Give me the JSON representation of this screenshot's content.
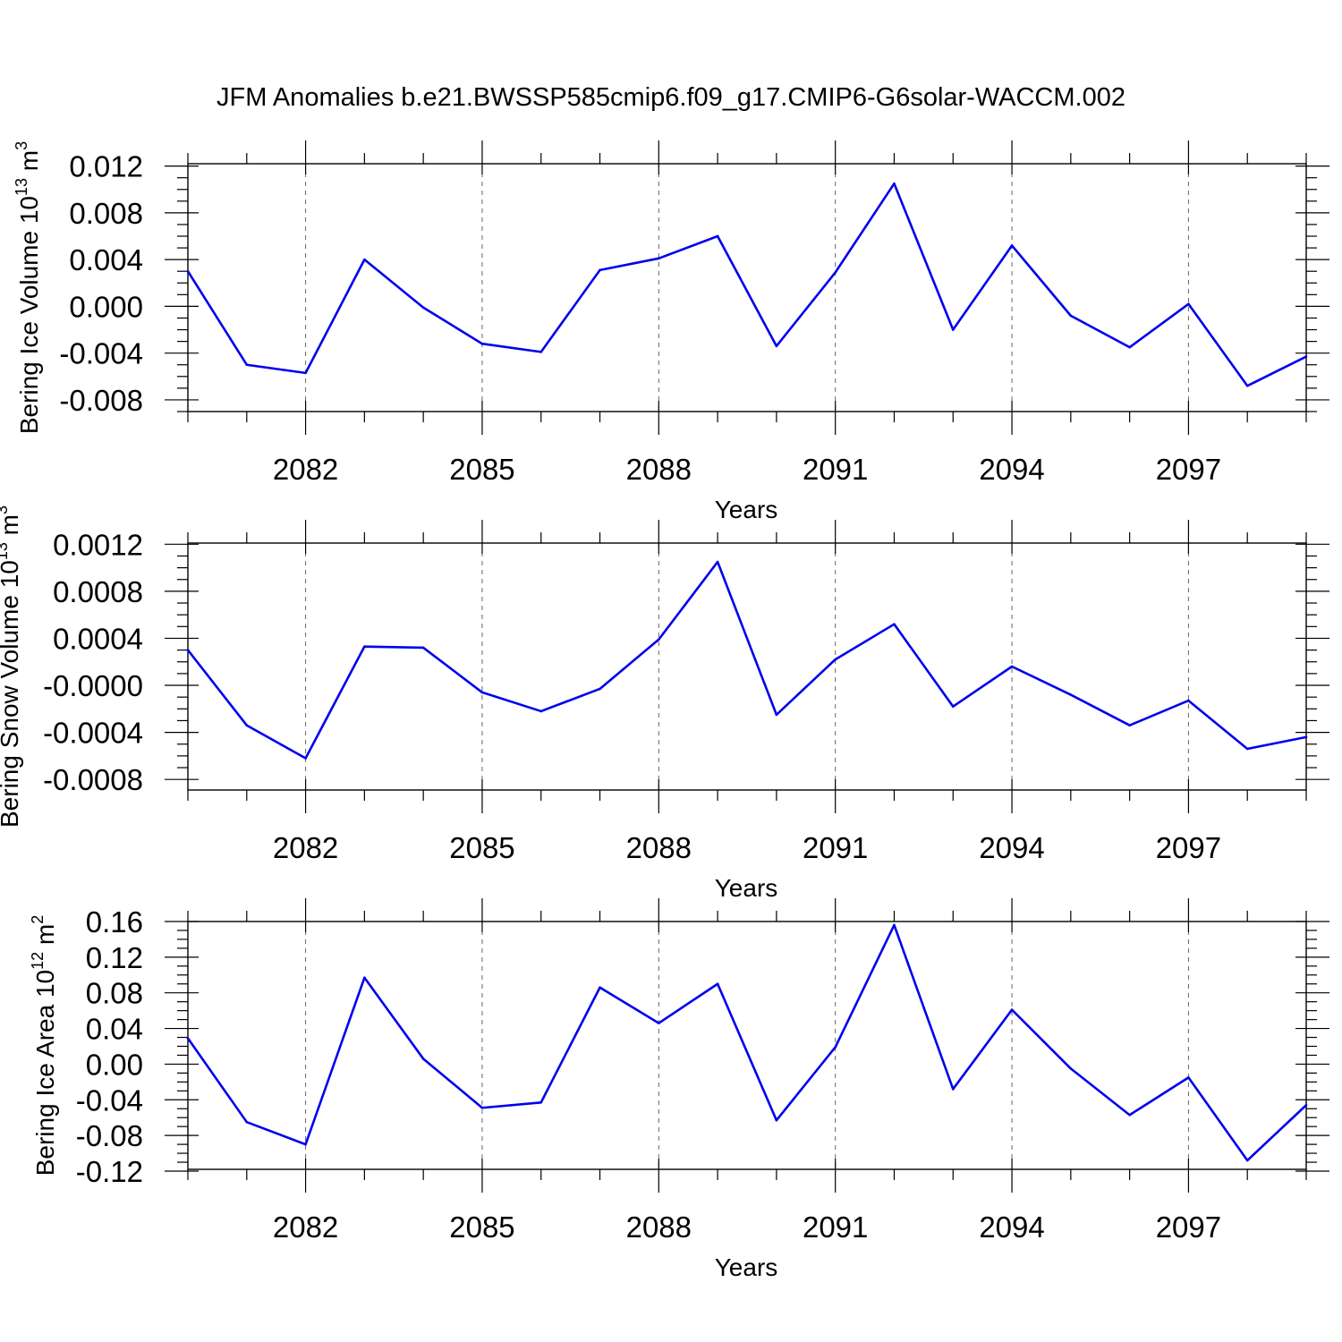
{
  "figure_title": "JFM Anomalies b.e21.BWSSP585cmip6.f09_g17.CMIP6-G6solar-WACCM.002",
  "line_color": "#0000ee",
  "chart_data": [
    {
      "type": "line",
      "title": "",
      "xlabel": "Years",
      "ylabel": "Bering Ice Volume 10",
      "ylabel_exp": "13",
      "ylabel_unit": " m",
      "ylabel_unit_exp": "3",
      "xlim": [
        2080,
        2099
      ],
      "ylim": [
        -0.009,
        0.0122
      ],
      "x_ticks": [
        2082,
        2085,
        2088,
        2091,
        2094,
        2097
      ],
      "x_tick_labels": [
        "2082",
        "2085",
        "2088",
        "2091",
        "2094",
        "2097"
      ],
      "y_ticks": [
        0.012,
        0.008,
        0.004,
        0.0,
        -0.004,
        -0.008
      ],
      "y_tick_labels": [
        "0.012",
        "0.008",
        "0.004",
        "0.000",
        "-0.004",
        "-0.008"
      ],
      "y_minor_step": 0.001,
      "grid": "vertical dashed at major x ticks",
      "x": [
        2080,
        2081,
        2082,
        2083,
        2084,
        2085,
        2086,
        2087,
        2088,
        2089,
        2090,
        2091,
        2092,
        2093,
        2094,
        2095,
        2096,
        2097,
        2098,
        2099
      ],
      "values": [
        0.003,
        -0.005,
        -0.0057,
        0.004,
        -0.0001,
        -0.0032,
        -0.0039,
        0.0031,
        0.0041,
        0.006,
        -0.0034,
        0.0029,
        0.0105,
        -0.002,
        0.0052,
        -0.0008,
        -0.0035,
        0.0002,
        -0.0068,
        -0.0043
      ]
    },
    {
      "type": "line",
      "title": "",
      "xlabel": "Years",
      "ylabel": "Bering Snow Volume 10",
      "ylabel_exp": "13",
      "ylabel_unit": " m",
      "ylabel_unit_exp": "3",
      "xlim": [
        2080,
        2099
      ],
      "ylim": [
        -0.00089,
        0.00121
      ],
      "x_ticks": [
        2082,
        2085,
        2088,
        2091,
        2094,
        2097
      ],
      "x_tick_labels": [
        "2082",
        "2085",
        "2088",
        "2091",
        "2094",
        "2097"
      ],
      "y_ticks": [
        0.0012,
        0.0008,
        0.0004,
        0.0,
        -0.0004,
        -0.0008
      ],
      "y_tick_labels": [
        "0.0012",
        "0.0008",
        "0.0004",
        "-0.0000",
        "-0.0004",
        "-0.0008"
      ],
      "y_minor_step": 0.0001,
      "grid": "vertical dashed at major x ticks",
      "x": [
        2080,
        2081,
        2082,
        2083,
        2084,
        2085,
        2086,
        2087,
        2088,
        2089,
        2090,
        2091,
        2092,
        2093,
        2094,
        2095,
        2096,
        2097,
        2098,
        2099
      ],
      "values": [
        0.0003,
        -0.00034,
        -0.00062,
        0.00033,
        0.00032,
        -6e-05,
        -0.00022,
        -3e-05,
        0.00039,
        0.00105,
        -0.00025,
        0.00022,
        0.00052,
        -0.00018,
        0.00016,
        -8e-05,
        -0.00034,
        -0.00013,
        -0.00054,
        -0.00044
      ]
    },
    {
      "type": "line",
      "title": "",
      "xlabel": "Years",
      "ylabel": "Bering Ice Area 10",
      "ylabel_exp": "12",
      "ylabel_unit": " m",
      "ylabel_unit_exp": "2",
      "xlim": [
        2080,
        2099
      ],
      "ylim": [
        -0.118,
        0.16
      ],
      "x_ticks": [
        2082,
        2085,
        2088,
        2091,
        2094,
        2097
      ],
      "x_tick_labels": [
        "2082",
        "2085",
        "2088",
        "2091",
        "2094",
        "2097"
      ],
      "y_ticks": [
        0.16,
        0.12,
        0.08,
        0.04,
        0.0,
        -0.04,
        -0.08,
        -0.12
      ],
      "y_tick_labels": [
        "0.16",
        "0.12",
        "0.08",
        "0.04",
        "0.00",
        "-0.04",
        "-0.08",
        "-0.12"
      ],
      "y_minor_step": 0.01,
      "grid": "vertical dashed at major x ticks",
      "x": [
        2080,
        2081,
        2082,
        2083,
        2084,
        2085,
        2086,
        2087,
        2088,
        2089,
        2090,
        2091,
        2092,
        2093,
        2094,
        2095,
        2096,
        2097,
        2098,
        2099
      ],
      "values": [
        0.029,
        -0.065,
        -0.09,
        0.097,
        0.006,
        -0.049,
        -0.043,
        0.086,
        0.046,
        0.09,
        -0.063,
        0.019,
        0.156,
        -0.028,
        0.061,
        -0.005,
        -0.057,
        -0.015,
        -0.108,
        -0.046
      ]
    }
  ]
}
